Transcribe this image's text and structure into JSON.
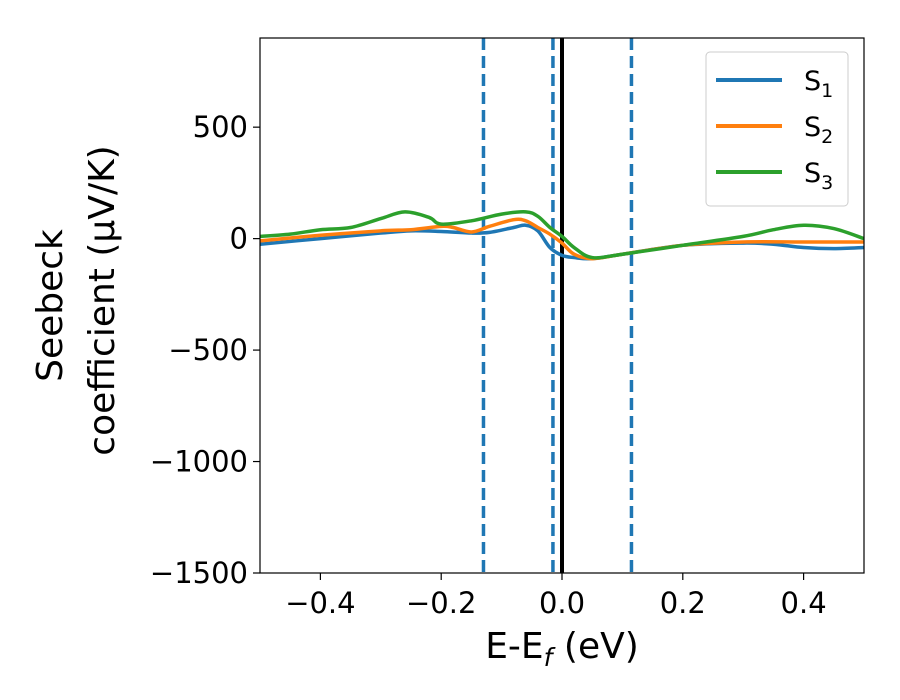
{
  "chart_data": {
    "type": "line",
    "xlabel": {
      "base": "E-E",
      "sub": "f",
      "tail": " (eV)"
    },
    "ylabel": {
      "line1": "Seebeck",
      "line2": "coefficient  (μV/K)"
    },
    "xlim": [
      -0.5,
      0.5
    ],
    "ylim": [
      -1500,
      900
    ],
    "xticks": [
      {
        "value": -0.4,
        "label": "−0.4"
      },
      {
        "value": -0.2,
        "label": "−0.2"
      },
      {
        "value": 0.0,
        "label": "0.0"
      },
      {
        "value": 0.2,
        "label": "0.2"
      },
      {
        "value": 0.4,
        "label": "0.4"
      }
    ],
    "yticks": [
      {
        "value": 500,
        "label": "500"
      },
      {
        "value": 0,
        "label": "0"
      },
      {
        "value": -500,
        "label": "−500"
      },
      {
        "value": -1000,
        "label": "−1000"
      },
      {
        "value": -1500,
        "label": "−1500"
      }
    ],
    "grid": false,
    "legend_position": "top-right",
    "vlines": [
      {
        "x": -0.13,
        "style": "dashed",
        "color": "#1f77b4"
      },
      {
        "x": -0.015,
        "style": "dashed",
        "color": "#1f77b4"
      },
      {
        "x": 0.0,
        "style": "solid",
        "color": "#000000"
      },
      {
        "x": 0.115,
        "style": "dashed",
        "color": "#1f77b4"
      }
    ],
    "series": [
      {
        "name": "S",
        "sub": "1",
        "color": "#1f77b4",
        "x": [
          -0.5,
          -0.4,
          -0.3,
          -0.25,
          -0.2,
          -0.15,
          -0.12,
          -0.08,
          -0.06,
          -0.04,
          -0.02,
          0.0,
          0.02,
          0.05,
          0.1,
          0.2,
          0.3,
          0.35,
          0.4,
          0.45,
          0.5
        ],
        "y": [
          -25,
          0,
          25,
          35,
          32,
          25,
          28,
          50,
          60,
          35,
          -40,
          -75,
          -85,
          -90,
          -70,
          -30,
          -20,
          -25,
          -40,
          -45,
          -40
        ]
      },
      {
        "name": "S",
        "sub": "2",
        "color": "#ff7f0e",
        "x": [
          -0.5,
          -0.4,
          -0.3,
          -0.25,
          -0.2,
          -0.18,
          -0.15,
          -0.12,
          -0.08,
          -0.06,
          -0.04,
          -0.02,
          0.0,
          0.02,
          0.05,
          0.1,
          0.2,
          0.3,
          0.4,
          0.5
        ],
        "y": [
          -10,
          15,
          35,
          40,
          55,
          50,
          30,
          55,
          85,
          80,
          50,
          20,
          -20,
          -70,
          -90,
          -70,
          -30,
          -15,
          -15,
          -15
        ]
      },
      {
        "name": "S",
        "sub": "3",
        "color": "#2ca02c",
        "x": [
          -0.5,
          -0.45,
          -0.4,
          -0.35,
          -0.3,
          -0.26,
          -0.22,
          -0.2,
          -0.15,
          -0.1,
          -0.06,
          -0.04,
          -0.02,
          0.0,
          0.02,
          0.05,
          0.1,
          0.2,
          0.3,
          0.35,
          0.4,
          0.45,
          0.5
        ],
        "y": [
          10,
          20,
          40,
          50,
          90,
          120,
          95,
          65,
          80,
          110,
          120,
          100,
          50,
          10,
          -40,
          -85,
          -70,
          -30,
          10,
          40,
          60,
          45,
          0
        ]
      }
    ]
  }
}
